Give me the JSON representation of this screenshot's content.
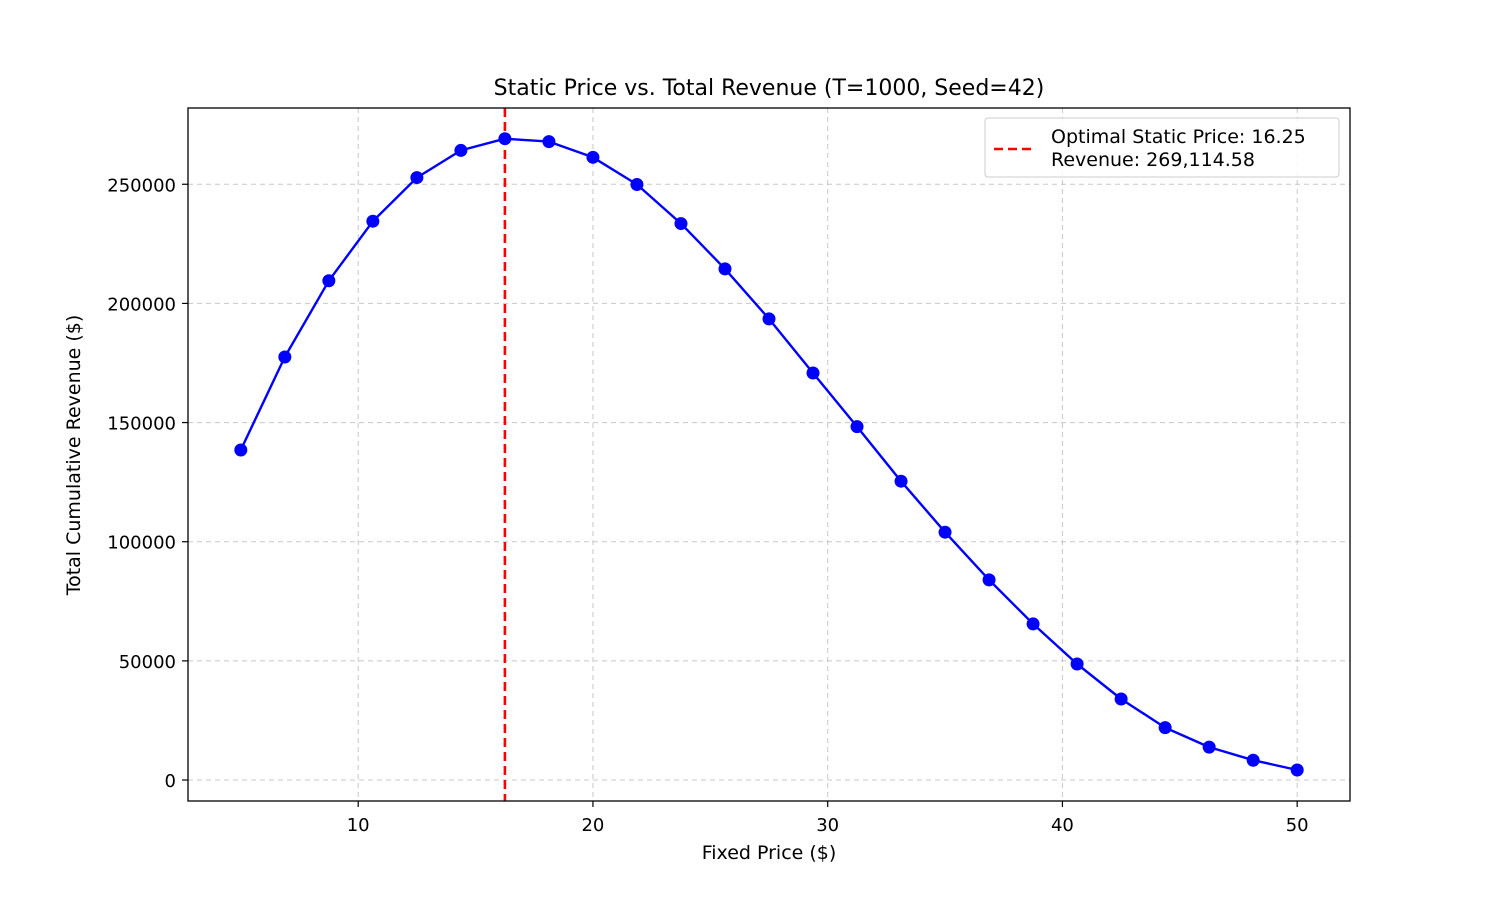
{
  "chart_data": {
    "type": "line",
    "title": "Static Price vs. Total Revenue (T=1000, Seed=42)",
    "xlabel": "Fixed Price ($)",
    "ylabel": "Total Cumulative Revenue ($)",
    "xlim": [
      2.75,
      52.25
    ],
    "ylim": [
      -8800,
      282000
    ],
    "x_ticks": [
      10,
      20,
      30,
      40,
      50
    ],
    "y_ticks": [
      0,
      50000,
      100000,
      150000,
      200000,
      250000
    ],
    "x_tick_labels": [
      "10",
      "20",
      "30",
      "40",
      "50"
    ],
    "y_tick_labels": [
      "0",
      "50000",
      "100000",
      "150000",
      "200000",
      "250000"
    ],
    "grid": true,
    "legend_position": "top-right",
    "series": [
      {
        "color": "#0000ff",
        "marker": "circle",
        "x": [
          5.0,
          6.875,
          8.75,
          10.625,
          12.5,
          14.375,
          16.25,
          18.125,
          20.0,
          21.875,
          23.75,
          25.625,
          27.5,
          29.375,
          31.25,
          33.125,
          35.0,
          36.875,
          38.75,
          40.625,
          42.5,
          44.375,
          46.25,
          48.125,
          50.0
        ],
        "values": [
          138500,
          177500,
          209500,
          234500,
          252800,
          264200,
          269114.58,
          267900,
          261300,
          249900,
          233500,
          214500,
          193500,
          170800,
          148300,
          125400,
          104000,
          84000,
          65500,
          48700,
          34000,
          22000,
          13800,
          8300,
          4200
        ]
      }
    ],
    "reference_line": {
      "orientation": "vertical",
      "x": 16.25,
      "color": "#ff0000",
      "style": "dashed",
      "legend_line1": "Optimal Static Price: 16.25",
      "legend_line2": "Revenue: 269,114.58"
    }
  }
}
